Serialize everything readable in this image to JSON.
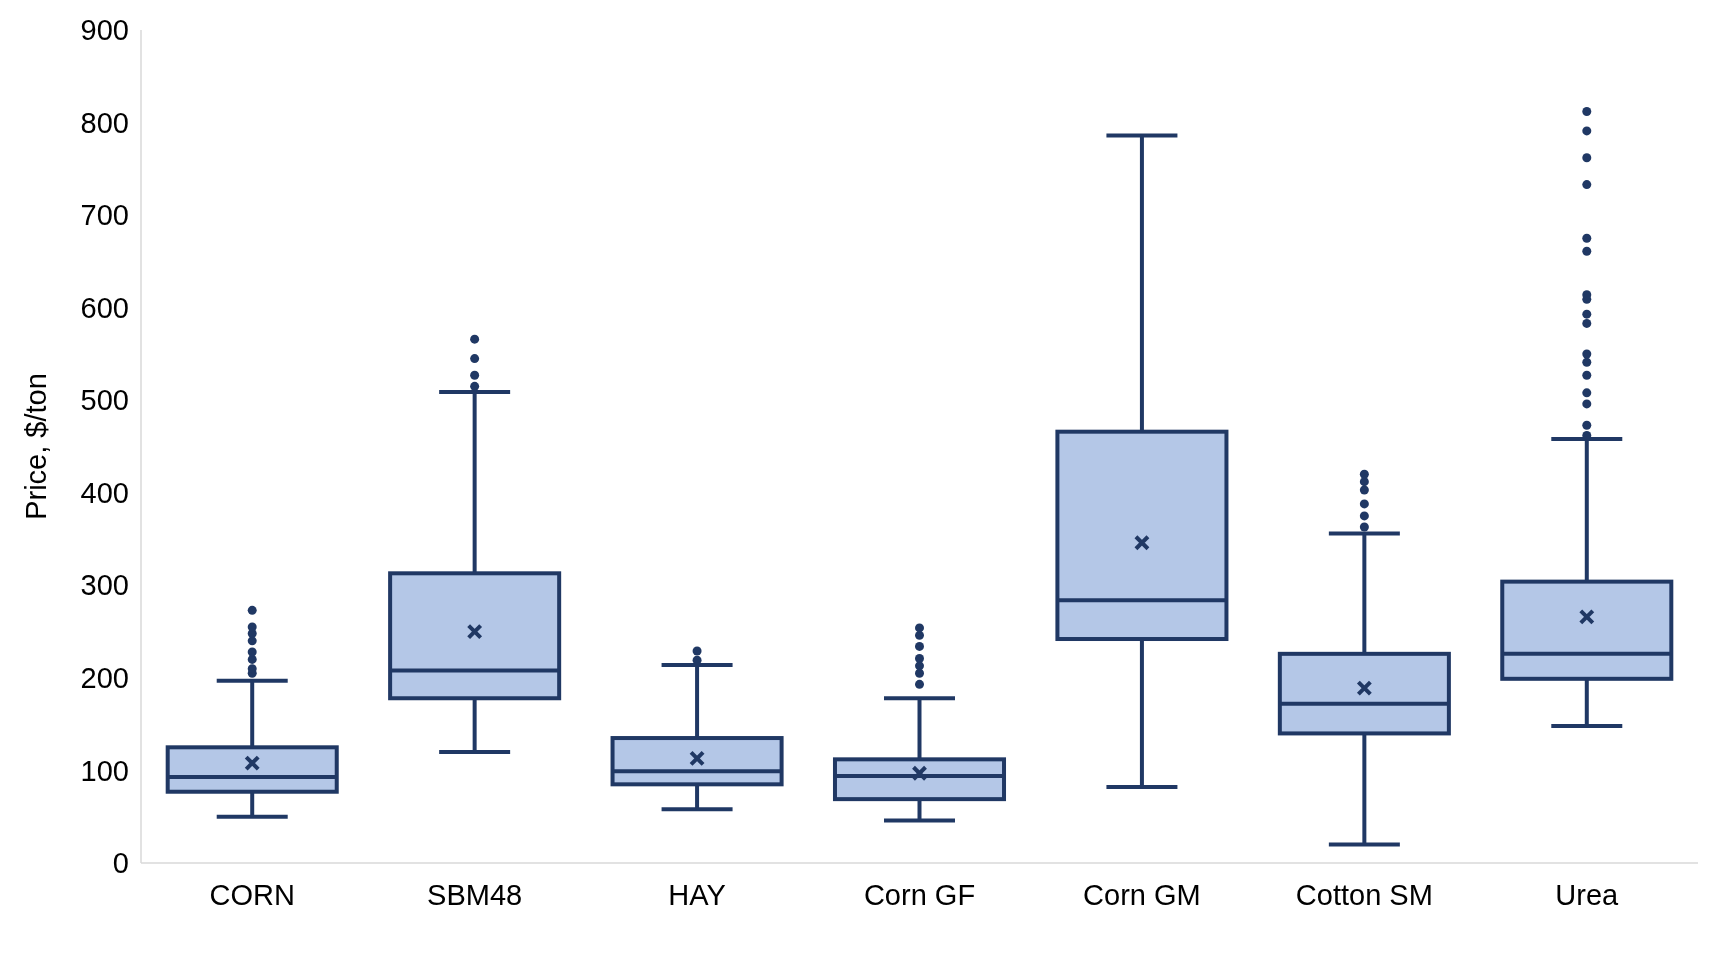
{
  "chart_data": {
    "type": "box",
    "ylabel": "Price, $/ton",
    "categories": [
      "CORN",
      "SBM48",
      "HAY",
      "Corn GF",
      "Corn GM",
      "Cotton SM",
      "Urea"
    ],
    "color": "#b4c7e7",
    "ylim": [
      0,
      900
    ],
    "yticks": [
      0,
      100,
      200,
      300,
      400,
      500,
      600,
      700,
      800,
      900
    ],
    "grid": false,
    "boxes": [
      {
        "low": 50,
        "q1": 77,
        "median": 93,
        "q3": 125,
        "high": 197,
        "mean": 108,
        "outliers": [
          205,
          210,
          220,
          228,
          240,
          248,
          255,
          273
        ]
      },
      {
        "low": 120,
        "q1": 178,
        "median": 208,
        "q3": 313,
        "high": 509,
        "mean": 250,
        "outliers": [
          515,
          527,
          545,
          566
        ]
      },
      {
        "low": 58,
        "q1": 85,
        "median": 99,
        "q3": 135,
        "high": 214,
        "mean": 113,
        "outliers": [
          219,
          229
        ]
      },
      {
        "low": 46,
        "q1": 69,
        "median": 94,
        "q3": 112,
        "high": 178,
        "mean": 97,
        "outliers": [
          193,
          205,
          213,
          221,
          234,
          246,
          254
        ]
      },
      {
        "low": 82,
        "q1": 242,
        "median": 284,
        "q3": 466,
        "high": 786,
        "mean": 346
      },
      {
        "low": 20,
        "q1": 140,
        "median": 172,
        "q3": 226,
        "high": 356,
        "mean": 189,
        "outliers": [
          363,
          375,
          388,
          403,
          412,
          420
        ]
      },
      {
        "low": 148,
        "q1": 199,
        "median": 226,
        "q3": 304,
        "high": 458,
        "mean": 266,
        "outliers": [
          462,
          473,
          496,
          508,
          527,
          541,
          550,
          583,
          593,
          609,
          614,
          661,
          675,
          733,
          762,
          791,
          812
        ]
      }
    ]
  }
}
